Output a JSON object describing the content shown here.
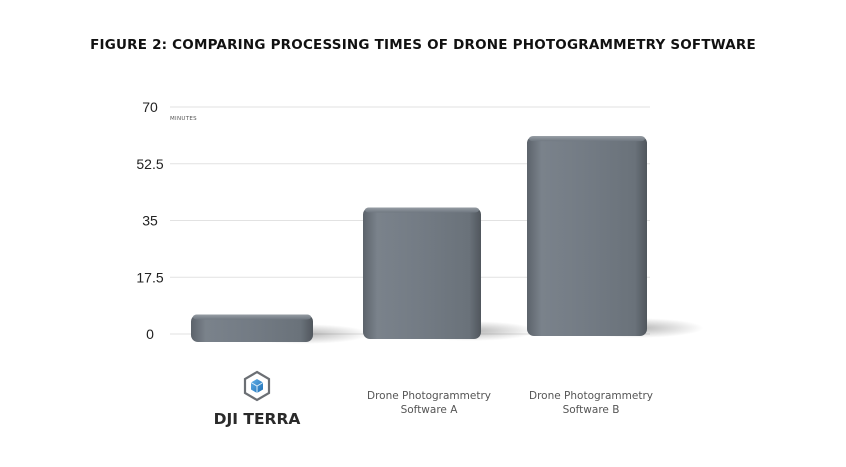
{
  "figure": {
    "title": "FIGURE 2: COMPARING PROCESSING TIMES OF DRONE PHOTOGRAMMETRY SOFTWARE"
  },
  "chart_data": {
    "type": "bar",
    "title": "FIGURE 2: COMPARING PROCESSING TIMES OF DRONE PHOTOGRAMMETRY SOFTWARE",
    "ylabel": "MINUTES",
    "xlabel": "",
    "ylim": [
      0,
      70
    ],
    "yticks": [
      "0",
      "17.5",
      "35",
      "52.5",
      "70"
    ],
    "categories": [
      "DJI TERRA",
      "Drone Photogrammetry Software A",
      "Drone Photogrammetry Software B"
    ],
    "category_lines": [
      [
        "DJI TERRA"
      ],
      [
        "Drone Photogrammetry",
        "Software A"
      ],
      [
        "Drone Photogrammetry",
        "Software B"
      ]
    ],
    "values": [
      6,
      39,
      61
    ],
    "grid": true,
    "bar_color": "#6f7780",
    "first_category_icon": "dji-terra-logo-icon"
  }
}
